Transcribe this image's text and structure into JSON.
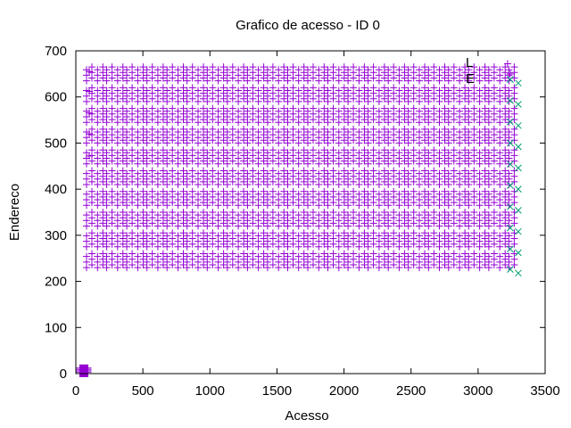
{
  "chart_data": {
    "type": "scatter",
    "title": "Grafico de acesso - ID 0",
    "xlabel": "Acesso",
    "ylabel": "Endereco",
    "xlim": [
      0,
      3500
    ],
    "ylim": [
      0,
      700
    ],
    "xticks": [
      0,
      500,
      1000,
      1500,
      2000,
      2500,
      3000,
      3500
    ],
    "yticks": [
      0,
      100,
      200,
      300,
      400,
      500,
      600,
      700
    ],
    "grid": false,
    "legend_position": "top-right",
    "legend_entries": [
      "L",
      "E"
    ],
    "series": [
      {
        "marker": "plus",
        "color": "#9400d3",
        "pattern": {
          "x_start": 100,
          "x_step": 75,
          "x_end": 3300,
          "band_y": [
            230,
            275,
            320,
            365,
            410,
            455,
            500,
            545,
            590,
            635
          ],
          "band_height": 30
        }
      },
      {
        "marker": "cross",
        "color": "#009e73",
        "x": 3300,
        "y": [
          218,
          262,
          308,
          354,
          400,
          446,
          492,
          538,
          584,
          630
        ]
      },
      {
        "marker": "plus",
        "color": "#9400d3",
        "cluster": {
          "x": [
            30,
            90
          ],
          "y": [
            0,
            12
          ]
        }
      }
    ],
    "extra_points": [
      {
        "x": 100,
        "y": 655
      },
      {
        "x": 100,
        "y": 612
      },
      {
        "x": 100,
        "y": 565
      },
      {
        "x": 100,
        "y": 520
      },
      {
        "x": 100,
        "y": 472
      },
      {
        "x": 3220,
        "y": 672
      },
      {
        "x": 3240,
        "y": 650
      }
    ]
  }
}
